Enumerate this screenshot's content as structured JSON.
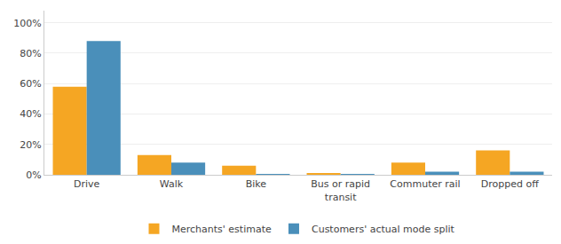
{
  "chart_data": {
    "type": "bar",
    "categories": [
      "Drive",
      "Walk",
      "Bike",
      "Bus or rapid\ntransit",
      "Commuter rail",
      "Dropped off"
    ],
    "series": [
      {
        "name": "Merchants' estimate",
        "color": "#f5a623",
        "values": [
          0.58,
          0.13,
          0.06,
          0.01,
          0.08,
          0.16
        ]
      },
      {
        "name": "Customers' actual mode split",
        "color": "#4a8fba",
        "values": [
          0.88,
          0.08,
          0.005,
          0.005,
          0.02,
          0.02
        ]
      }
    ],
    "ylim": [
      0,
      1.08
    ],
    "yticks": [
      {
        "value": 0,
        "label": "0%"
      },
      {
        "value": 0.2,
        "label": "20%"
      },
      {
        "value": 0.4,
        "label": "40%"
      },
      {
        "value": 0.6,
        "label": "60%"
      },
      {
        "value": 0.8,
        "label": "80%"
      },
      {
        "value": 1.0,
        "label": "100%"
      }
    ],
    "grid": true,
    "legend": "bottom"
  }
}
